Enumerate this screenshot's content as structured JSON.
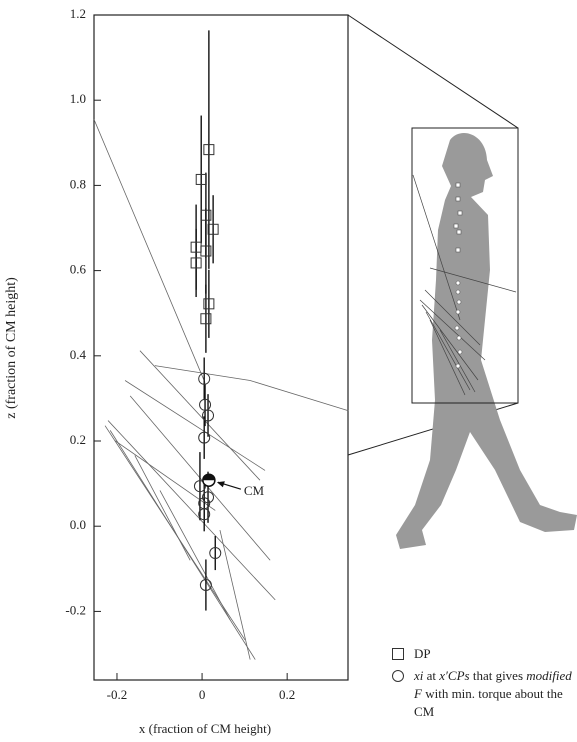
{
  "chart_data": {
    "type": "scatter",
    "xlabel": "x (fraction of CM height)",
    "ylabel": "z (fraction of CM height)",
    "xlim": [
      -0.254,
      0.343
    ],
    "ylim": [
      -0.361,
      1.2
    ],
    "xticks": [
      -0.2,
      0,
      0.2
    ],
    "yticks": [
      -0.2,
      {
        "value": 0,
        "label": "0.0"
      },
      0.2,
      0.4,
      0.6,
      0.8,
      {
        "value": 1,
        "label": "1.0"
      },
      1.2
    ],
    "series": [
      {
        "name": [
          {
            "text": "DP",
            "italic": false
          }
        ],
        "marker": "square",
        "color": "#333333",
        "x": [
          0.016,
          -0.002,
          0.009,
          0.026,
          -0.014,
          0.009,
          -0.014,
          0.016,
          0.009
        ],
        "y": [
          0.884,
          0.814,
          0.73,
          0.697,
          0.655,
          0.646,
          0.618,
          0.522,
          0.487
        ],
        "yerr": [
          0.28,
          0.15,
          0.1,
          0.08,
          0.1,
          0.1,
          0.08,
          0.08,
          0.08
        ]
      },
      {
        "name": [
          {
            "text": "xi",
            "italic": true
          },
          {
            "text": " at ",
            "italic": false
          },
          {
            "text": "x′CPs",
            "italic": true
          },
          {
            "text": " that gives ",
            "italic": false
          },
          {
            "text": "modified F",
            "italic": true
          },
          {
            "text": " with min. torque about the CM",
            "italic": false
          }
        ],
        "marker": "circle",
        "color": "#333333",
        "x": [
          0.005,
          0.007,
          0.014,
          0.005,
          -0.005,
          0.014,
          0.005,
          0.005,
          0.031,
          0.009
        ],
        "y": [
          0.346,
          0.285,
          0.26,
          0.208,
          0.094,
          0.068,
          0.054,
          0.028,
          -0.063,
          -0.138
        ],
        "yerr": [
          0.05,
          0.05,
          0.05,
          0.05,
          0.08,
          0.06,
          0.05,
          0.04,
          0.04,
          0.06
        ]
      }
    ],
    "curves": [
      {
        "x": [
          -0.254,
          0.007
        ],
        "y": [
          0.955,
          0.337
        ]
      },
      {
        "x": [
          -0.111,
          0.113,
          0.344
        ],
        "y": [
          0.377,
          0.342,
          0.271
        ]
      },
      {
        "x": [
          -0.146,
          0.136
        ],
        "y": [
          0.412,
          0.108
        ]
      },
      {
        "x": [
          -0.181,
          0.148
        ],
        "y": [
          0.342,
          0.131
        ]
      },
      {
        "x": [
          -0.169,
          0.16
        ],
        "y": [
          0.306,
          -0.08
        ]
      },
      {
        "x": [
          -0.221,
          0.172
        ],
        "y": [
          0.248,
          -0.173
        ]
      },
      {
        "x": [
          -0.228,
          0.101
        ],
        "y": [
          0.236,
          -0.267
        ]
      },
      {
        "x": [
          -0.216,
          0.125
        ],
        "y": [
          0.225,
          -0.313
        ]
      },
      {
        "x": [
          -0.205,
          0.031
        ],
        "y": [
          0.201,
          0.037
        ]
      },
      {
        "x": [
          -0.158,
          -0.028
        ],
        "y": [
          0.166,
          -0.08
        ]
      },
      {
        "x": [
          -0.099,
          0.066
        ],
        "y": [
          0.084,
          -0.22
        ]
      },
      {
        "x": [
          0.042,
          0.113
        ],
        "y": [
          -0.009,
          -0.313
        ]
      }
    ],
    "cm": {
      "x": 0.016,
      "y": 0.108,
      "label": "CM"
    }
  }
}
